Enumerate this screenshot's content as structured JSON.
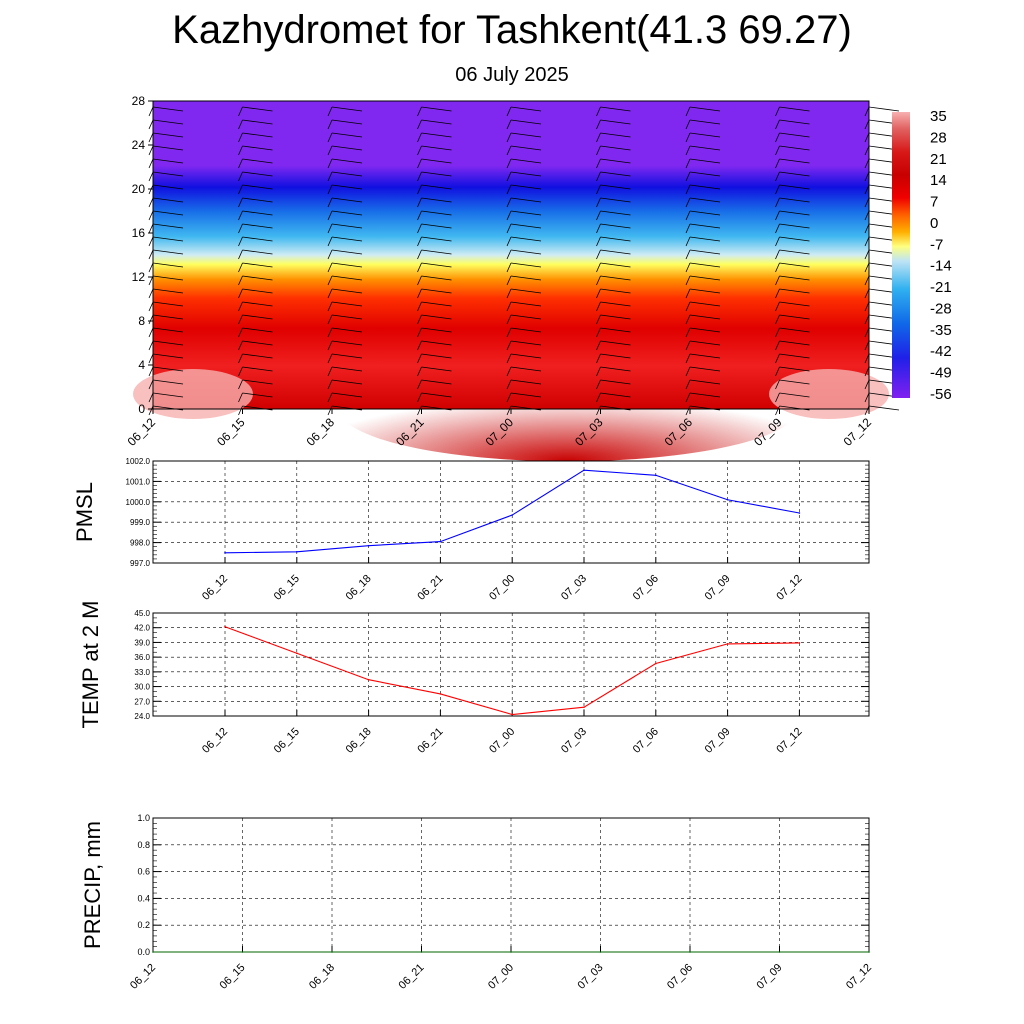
{
  "title": "Kazhydromet for Tashkent(41.3 69.27)",
  "subtitle": "06 July 2025",
  "colors": {
    "pmsl_line": "#0000ff",
    "temp_line": "#ff0000",
    "precip_line": "#006400",
    "colorbar_stops": [
      "#f8b0b0",
      "#e06060",
      "#d81818",
      "#c80000",
      "#f00000",
      "#ff6000",
      "#ffb000",
      "#ffff80",
      "#a0d8f0",
      "#30b0f0",
      "#1068e8",
      "#2020e8",
      "#8020f0"
    ]
  },
  "chart_data": [
    {
      "type": "heatmap",
      "name": "cross-section",
      "x_ticks": [
        "06_12",
        "06_15",
        "06_18",
        "06_21",
        "07_00",
        "07_03",
        "07_06",
        "07_09",
        "07_12"
      ],
      "y_ticks": [
        "0",
        "4",
        "8",
        "12",
        "16",
        "20",
        "24",
        "28"
      ],
      "ylim": [
        0,
        28
      ],
      "colorbar_labels": [
        "35",
        "28",
        "21",
        "14",
        "7",
        "0",
        "-7",
        "-14",
        "-21",
        "-28",
        "-35",
        "-42",
        "-49",
        "-56"
      ],
      "overlay": "wind barbs"
    },
    {
      "type": "line",
      "ylabel": "PMSL",
      "categories": [
        "06_12",
        "06_15",
        "06_18",
        "06_21",
        "07_00",
        "07_03",
        "07_06",
        "07_09",
        "07_12"
      ],
      "values": [
        997.5,
        997.55,
        997.85,
        998.05,
        999.35,
        1001.55,
        1001.3,
        1000.1,
        999.45
      ],
      "ylim": [
        997.0,
        1002.0
      ],
      "y_ticks": [
        "997.0",
        "998.0",
        "999.0",
        "1000.0",
        "1001.0",
        "1002.0"
      ]
    },
    {
      "type": "line",
      "ylabel": "TEMP at 2 M",
      "categories": [
        "06_12",
        "06_15",
        "06_18",
        "06_21",
        "07_00",
        "07_03",
        "07_06",
        "07_09",
        "07_12"
      ],
      "values": [
        42.2,
        36.8,
        31.4,
        28.5,
        24.3,
        25.8,
        34.7,
        38.7,
        38.9
      ],
      "ylim": [
        24.0,
        45.0
      ],
      "y_ticks": [
        "24.0",
        "27.0",
        "30.0",
        "33.0",
        "36.0",
        "39.0",
        "42.0",
        "45.0"
      ]
    },
    {
      "type": "line",
      "ylabel": "PRECIP, mm",
      "x_ticks": [
        "06_12",
        "06_15",
        "06_18",
        "06_21",
        "07_00",
        "07_03",
        "07_06",
        "07_09",
        "07_12"
      ],
      "values": [
        0,
        0,
        0,
        0,
        0,
        0,
        0,
        0,
        0
      ],
      "ylim": [
        0,
        1.0
      ],
      "y_ticks": [
        "0.0",
        "0.2",
        "0.4",
        "0.6",
        "0.8",
        "1.0"
      ]
    }
  ]
}
